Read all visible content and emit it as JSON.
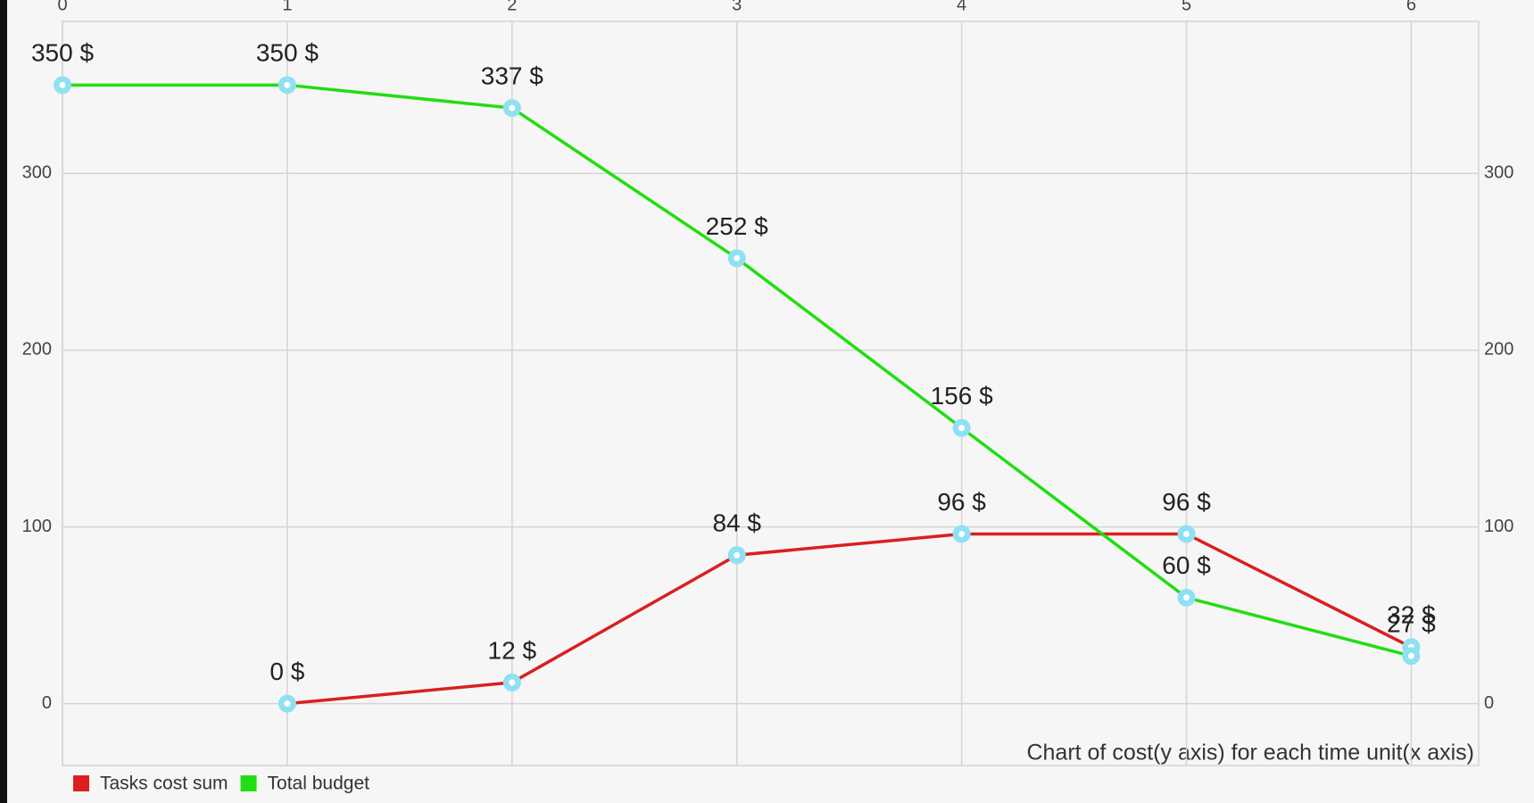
{
  "chart_data": {
    "type": "line",
    "description": "Chart of cost(y axis) for each time unit(x axis)",
    "x": [
      0,
      1,
      2,
      3,
      4,
      5,
      6
    ],
    "series": [
      {
        "name": "Tasks cost sum",
        "color": "#d9201f",
        "values": [
          null,
          0,
          12,
          84,
          96,
          96,
          32
        ],
        "value_labels": [
          null,
          "0 $",
          "12 $",
          "84 $",
          "96 $",
          "96 $",
          "32 $"
        ]
      },
      {
        "name": "Total budget",
        "color": "#22dd11",
        "values": [
          350,
          350,
          337,
          252,
          156,
          60,
          27
        ],
        "value_labels": [
          "350 $",
          "350 $",
          "337 $",
          "252 $",
          "156 $",
          "60 $",
          "27 $"
        ]
      }
    ],
    "xlim": [
      0,
      6.3
    ],
    "xticks": [
      0,
      1,
      2,
      3,
      4,
      5,
      6
    ],
    "ylim": [
      -35,
      386
    ],
    "yticks": [
      0,
      100,
      200,
      300
    ],
    "y2lim": [
      -35,
      386
    ],
    "y2ticks": [
      0,
      100,
      200,
      300
    ],
    "grid": true,
    "legend": "bottom-left",
    "marker_color": "#8fe0f2"
  }
}
